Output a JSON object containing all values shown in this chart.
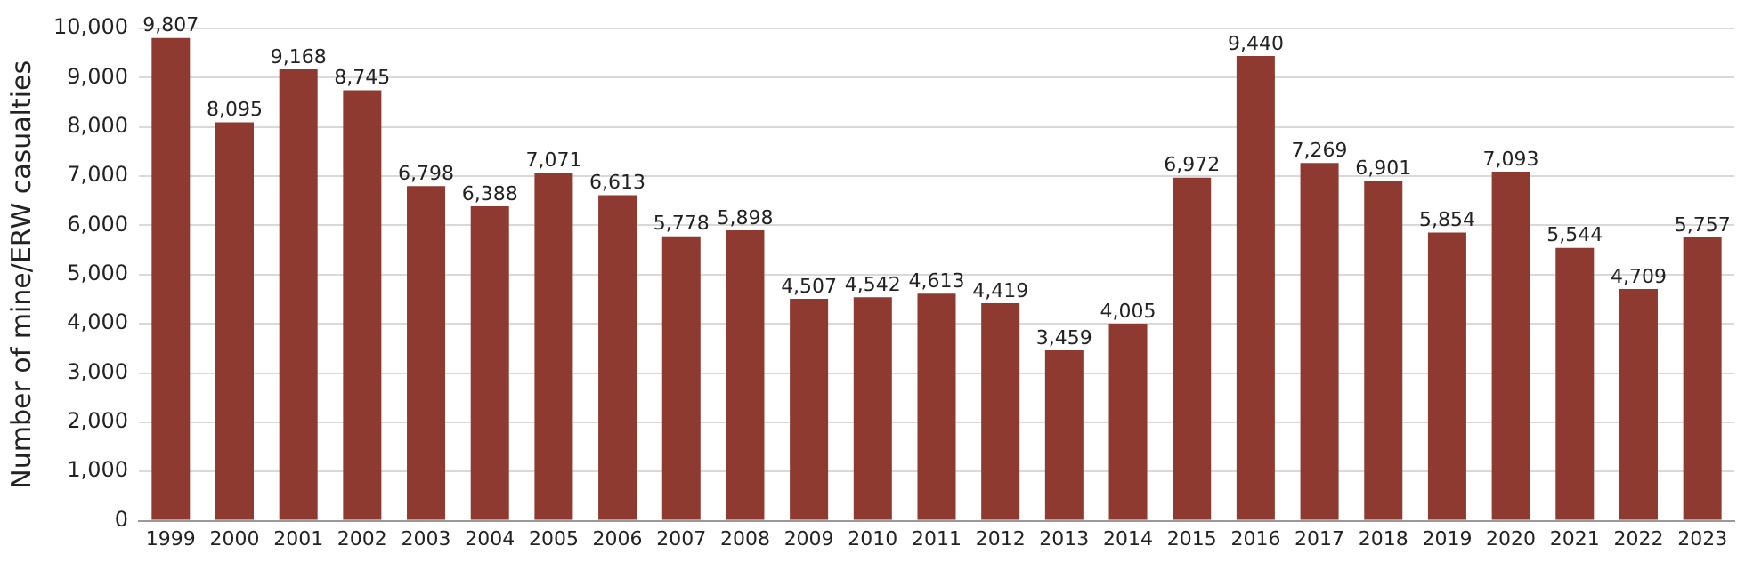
{
  "chart_data": {
    "type": "bar",
    "ylabel": "Number of mine/ERW casualties",
    "categories": [
      "1999",
      "2000",
      "2001",
      "2002",
      "2003",
      "2004",
      "2005",
      "2006",
      "2007",
      "2008",
      "2009",
      "2010",
      "2011",
      "2012",
      "2013",
      "2014",
      "2015",
      "2016",
      "2017",
      "2018",
      "2019",
      "2020",
      "2021",
      "2022",
      "2023"
    ],
    "values": [
      9807,
      8095,
      9168,
      8745,
      6798,
      6388,
      7071,
      6613,
      5778,
      5898,
      4507,
      4542,
      4613,
      4419,
      3459,
      4005,
      6972,
      9440,
      7269,
      6901,
      5854,
      7093,
      5544,
      4709,
      5757
    ],
    "value_labels": [
      "9,807",
      "8,095",
      "9,168",
      "8,745",
      "6,798",
      "6,388",
      "7,071",
      "6,613",
      "5,778",
      "5,898",
      "4,507",
      "4,542",
      "4,613",
      "4,419",
      "3,459",
      "4,005",
      "6,972",
      "9,440",
      "7,269",
      "6,901",
      "5,854",
      "7,093",
      "5,544",
      "4,709",
      "5,757"
    ],
    "color": "#8e3a30",
    "ylim": [
      0,
      10000
    ],
    "yticks": [
      0,
      {
        "value": 1000,
        "label": "1,000"
      },
      {
        "value": 2000,
        "label": "2,000"
      },
      {
        "value": 3000,
        "label": "3,000"
      },
      {
        "value": 4000,
        "label": "4,000"
      },
      {
        "value": 5000,
        "label": "5,000"
      },
      {
        "value": 6000,
        "label": "6,000"
      },
      {
        "value": 7000,
        "label": "7,000"
      },
      {
        "value": 8000,
        "label": "8,000"
      },
      {
        "value": 9000,
        "label": "9,000"
      },
      {
        "value": 10000,
        "label": "10,000"
      }
    ],
    "grid": "y"
  }
}
